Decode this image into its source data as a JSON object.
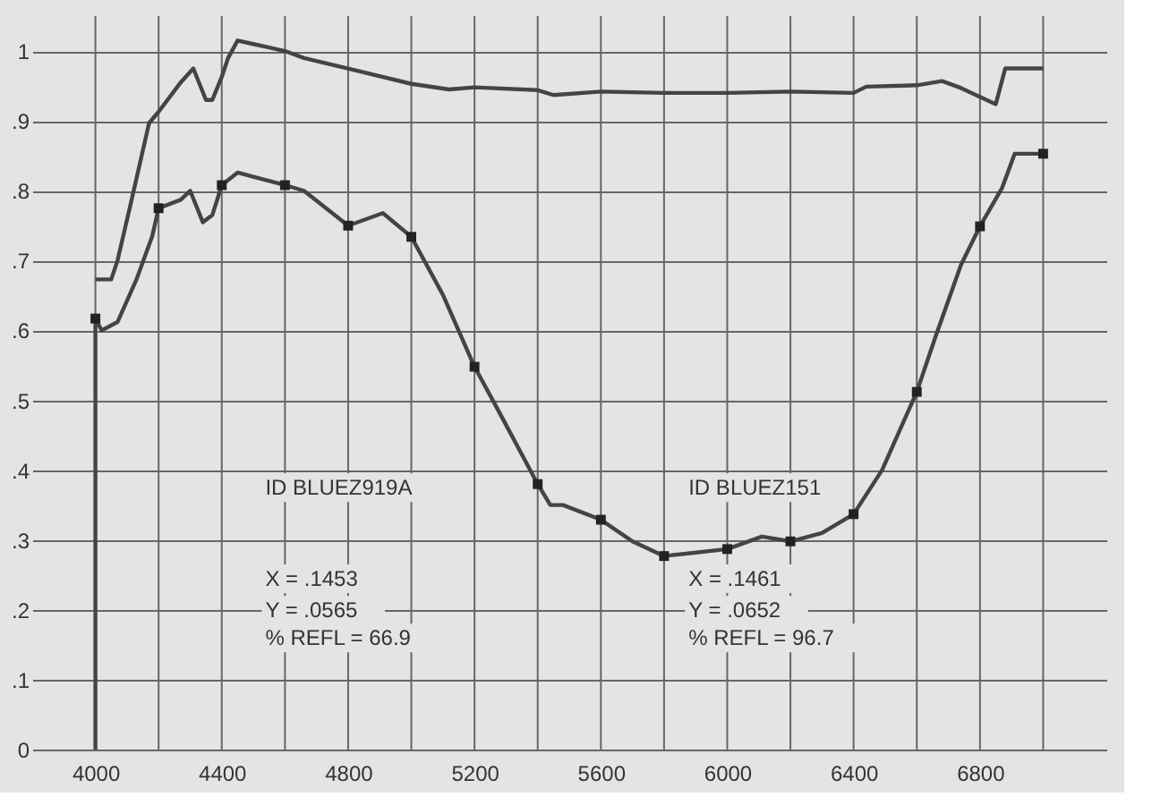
{
  "chart_data": {
    "type": "line",
    "xlim": [
      3800,
      7200
    ],
    "ylim": [
      0,
      1.05
    ],
    "xticks": [
      4000,
      {
        "value": 4200,
        "label": null
      },
      4400,
      {
        "value": 4600,
        "label": null
      },
      4800,
      {
        "value": 5000,
        "label": null
      },
      5200,
      {
        "value": 5400,
        "label": null
      },
      5600,
      {
        "value": 5800,
        "label": null
      },
      6000,
      {
        "value": 6200,
        "label": null
      },
      6400,
      {
        "value": 6600,
        "label": null
      },
      6800,
      {
        "value": 7000,
        "label": null
      }
    ],
    "yticks": [
      0,
      {
        "value": 0.1,
        "label": ".1"
      },
      {
        "value": 0.2,
        "label": ".2"
      },
      {
        "value": 0.3,
        "label": ".3"
      },
      {
        "value": 0.4,
        "label": ".4"
      },
      {
        "value": 0.5,
        "label": ".5"
      },
      {
        "value": 0.6,
        "label": ".6"
      },
      {
        "value": 0.7,
        "label": ".7"
      },
      {
        "value": 0.8,
        "label": ".8"
      },
      {
        "value": 0.9,
        "label": ".9"
      },
      1
    ],
    "grid": true,
    "series": [
      {
        "color": "#444444",
        "x": [
          4000,
          4050,
          4070,
          4110,
          4170,
          4200,
          4270,
          4310,
          4350,
          4370,
          4400,
          4420,
          4450,
          4500,
          4550,
          4600,
          4660,
          4800,
          5000,
          5120,
          5200,
          5400,
          5450,
          5600,
          5800,
          6000,
          6200,
          6400,
          6440,
          6600,
          6680,
          6740,
          6850,
          6880,
          7000
        ],
        "values": [
          0.673,
          0.673,
          0.7,
          0.778,
          0.897,
          0.913,
          0.955,
          0.975,
          0.93,
          0.93,
          0.963,
          0.99,
          1.015,
          1.01,
          1.005,
          1.0,
          0.99,
          0.975,
          0.953,
          0.945,
          0.948,
          0.944,
          0.937,
          0.942,
          0.94,
          0.94,
          0.942,
          0.94,
          0.949,
          0.951,
          0.957,
          0.947,
          0.924,
          0.975,
          0.975
        ]
      },
      {
        "color": "#444444",
        "x": [
          4000,
          4000,
          4020,
          4070,
          4130,
          4180,
          4200,
          4270,
          4300,
          4340,
          4370,
          4400,
          4450,
          4500,
          4600,
          4660,
          4800,
          4910,
          5000,
          5100,
          5200,
          5270,
          5400,
          5440,
          5480,
          5600,
          5700,
          5800,
          6000,
          6110,
          6200,
          6300,
          6400,
          6490,
          6600,
          6660,
          6740,
          6800,
          6870,
          6910,
          7000
        ],
        "values": [
          0,
          0.617,
          0.6,
          0.612,
          0.673,
          0.735,
          0.775,
          0.787,
          0.8,
          0.755,
          0.765,
          0.808,
          0.826,
          0.82,
          0.808,
          0.8,
          0.75,
          0.768,
          0.734,
          0.651,
          0.548,
          0.49,
          0.38,
          0.35,
          0.35,
          0.329,
          0.298,
          0.277,
          0.287,
          0.305,
          0.298,
          0.31,
          0.337,
          0.4,
          0.512,
          0.592,
          0.694,
          0.749,
          0.804,
          0.853,
          0.853
        ]
      },
      {
        "type": "scatter",
        "marker": "square",
        "color": "#222222",
        "x": [
          4000,
          4200,
          4400,
          4600,
          4800,
          5000,
          5200,
          5400,
          5600,
          5800,
          6000,
          6200,
          6400,
          6600,
          6800,
          7000
        ],
        "values": [
          0.617,
          0.775,
          0.808,
          0.808,
          0.75,
          0.734,
          0.548,
          0.38,
          0.329,
          0.277,
          0.287,
          0.298,
          0.337,
          0.512,
          0.749,
          0.853
        ]
      }
    ],
    "annotations": [
      "ID BLUEZ919A",
      "X = .1453",
      "Y = .0565",
      "% REFL = 66.9",
      "ID BLUEZ151",
      "X = .1461",
      "Y = .0652",
      "% REFL = 96.7"
    ]
  }
}
